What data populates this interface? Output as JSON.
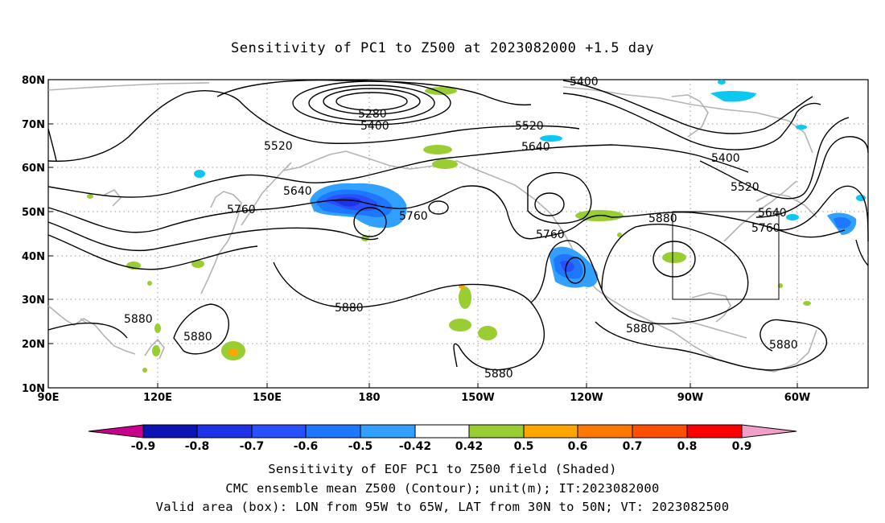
{
  "title": "Sensitivity of PC1 to Z500 at 2023082000 +1.5 day",
  "map": {
    "lat_ticks": [
      "80N",
      "70N",
      "60N",
      "50N",
      "40N",
      "30N",
      "20N",
      "10N"
    ],
    "lon_ticks": [
      "90E",
      "120E",
      "150E",
      "180",
      "150W",
      "120W",
      "90W",
      "60W"
    ],
    "contour_labels": [
      "5400",
      "5280",
      "5400",
      "5520",
      "5520",
      "5640",
      "5640",
      "5760",
      "5760",
      "5760",
      "5880",
      "5880",
      "5880",
      "5880",
      "5880",
      "5880",
      "5880",
      "5400",
      "5520",
      "5640",
      "5760"
    ],
    "valid_box": {
      "lon_west": "95W",
      "lon_east": "65W",
      "lat_south": "30N",
      "lat_north": "50N"
    }
  },
  "colorbar": {
    "labels": [
      "-0.9",
      "-0.8",
      "-0.7",
      "-0.6",
      "-0.5",
      "-0.42",
      "0.42",
      "0.5",
      "0.6",
      "0.7",
      "0.8",
      "0.9"
    ],
    "colors": [
      "#c8008c",
      "#0a14b4",
      "#1e32e6",
      "#2850ff",
      "#1e78ff",
      "#32a0ff",
      "#0ac8f0",
      "#ffffff",
      "#9acd32",
      "#ffa500",
      "#ff7800",
      "#ff5000",
      "#ff0000",
      "#f0a0c8"
    ]
  },
  "captions": {
    "line1": "Sensitivity of EOF PC1 to Z500 field (Shaded)",
    "line2": "CMC ensemble mean Z500 (Contour); unit(m); IT:2023082000",
    "line3": "Valid area (box): LON from 95W to 65W, LAT from 30N to 50N; VT: 2023082500"
  }
}
